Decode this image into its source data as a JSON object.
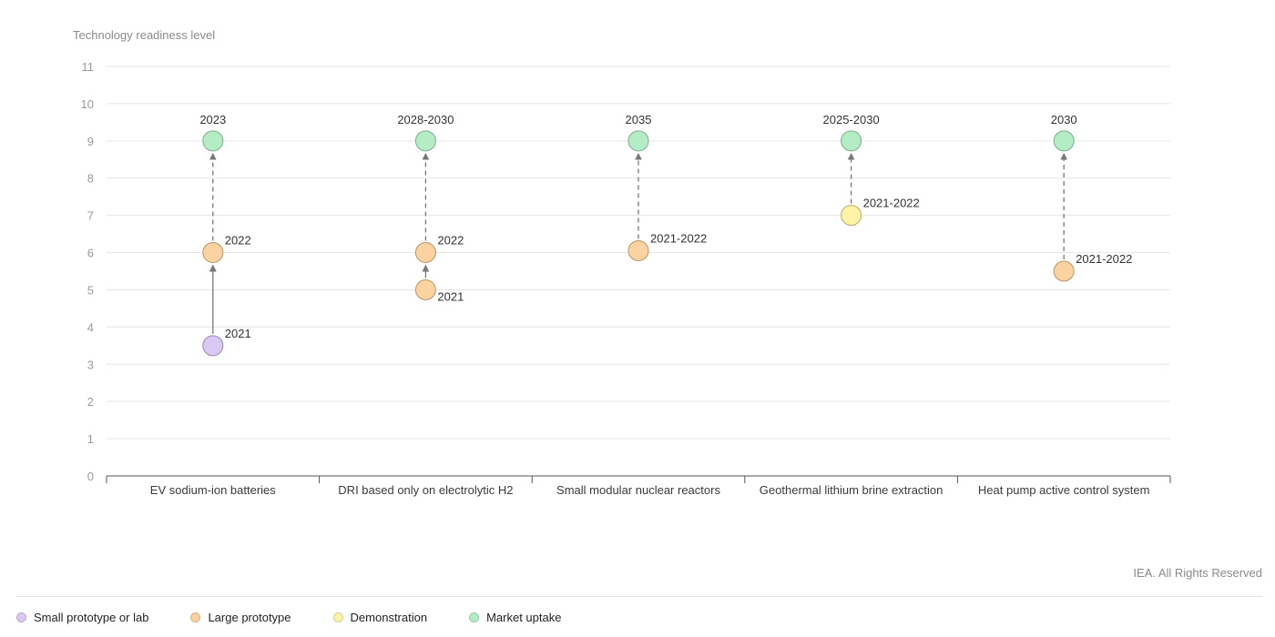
{
  "chart_data": {
    "type": "scatter",
    "ylabel": "Technology readiness level",
    "ylim": [
      0,
      11
    ],
    "yticks": [
      0,
      1,
      2,
      3,
      4,
      5,
      6,
      7,
      8,
      9,
      10,
      11
    ],
    "grid": true,
    "categories": [
      "EV sodium-ion batteries",
      "DRI based only on electrolytic H2",
      "Small modular nuclear reactors",
      "Geothermal lithium brine extraction",
      "Heat pump active control system"
    ],
    "stages": [
      {
        "key": "small_prototype",
        "name": "Small prototype or lab",
        "color": "#d9c8f2",
        "stroke": "#9a86b8"
      },
      {
        "key": "large_prototype",
        "name": "Large prototype",
        "color": "#fbd3a0",
        "stroke": "#b89466"
      },
      {
        "key": "demonstration",
        "name": "Demonstration",
        "color": "#fff3a8",
        "stroke": "#b5aa6a"
      },
      {
        "key": "market_uptake",
        "name": "Market uptake",
        "color": "#b4ecc4",
        "stroke": "#7bb08a"
      }
    ],
    "points": [
      {
        "category": 0,
        "trl": 3.5,
        "label": "2021",
        "stage": "small_prototype"
      },
      {
        "category": 0,
        "trl": 6,
        "label": "2022",
        "stage": "large_prototype"
      },
      {
        "category": 0,
        "trl": 9,
        "label": "2023",
        "stage": "market_uptake"
      },
      {
        "category": 1,
        "trl": 5,
        "label": "2021",
        "stage": "large_prototype"
      },
      {
        "category": 1,
        "trl": 6,
        "label": "2022",
        "stage": "large_prototype"
      },
      {
        "category": 1,
        "trl": 9,
        "label": "2028-2030",
        "stage": "market_uptake"
      },
      {
        "category": 2,
        "trl": 6.05,
        "label": "2021-2022",
        "stage": "large_prototype"
      },
      {
        "category": 2,
        "trl": 9,
        "label": "2035",
        "stage": "market_uptake"
      },
      {
        "category": 3,
        "trl": 7,
        "label": "2021-2022",
        "stage": "demonstration"
      },
      {
        "category": 3,
        "trl": 9,
        "label": "2025-2030",
        "stage": "market_uptake"
      },
      {
        "category": 4,
        "trl": 5.5,
        "label": "2021-2022",
        "stage": "large_prototype"
      },
      {
        "category": 4,
        "trl": 9,
        "label": "2030",
        "stage": "market_uptake"
      }
    ],
    "arrows": [
      {
        "category": 0,
        "from": 3.5,
        "to": 6,
        "style": "solid"
      },
      {
        "category": 0,
        "from": 6,
        "to": 9,
        "style": "dashed"
      },
      {
        "category": 1,
        "from": 5,
        "to": 6,
        "style": "solid"
      },
      {
        "category": 1,
        "from": 6,
        "to": 9,
        "style": "dashed"
      },
      {
        "category": 2,
        "from": 6.05,
        "to": 9,
        "style": "dashed"
      },
      {
        "category": 3,
        "from": 7,
        "to": 9,
        "style": "dashed"
      },
      {
        "category": 4,
        "from": 5.5,
        "to": 9,
        "style": "dashed"
      }
    ]
  },
  "footer": {
    "copyright": "IEA. All Rights Reserved"
  },
  "legend": {
    "items": [
      {
        "label": "Small prototype or lab",
        "color": "#d9c8f2"
      },
      {
        "label": "Large prototype",
        "color": "#fbd3a0"
      },
      {
        "label": "Demonstration",
        "color": "#fff3a8"
      },
      {
        "label": "Market uptake",
        "color": "#b4ecc4"
      }
    ]
  }
}
